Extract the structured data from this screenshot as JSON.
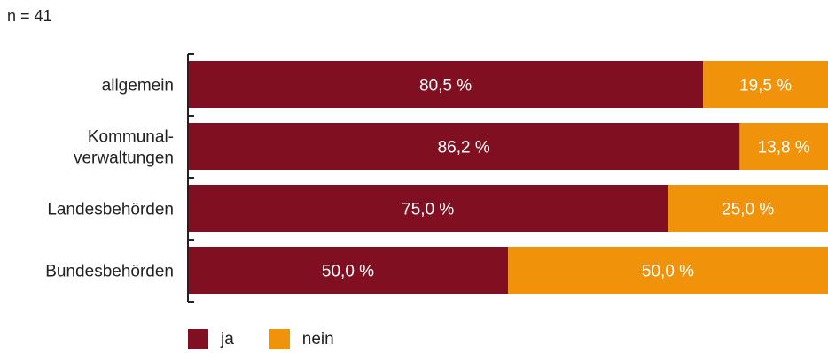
{
  "note": "n = 41",
  "chart_data": {
    "type": "bar",
    "orientation": "horizontal",
    "stacked": true,
    "categories": [
      [
        "allgemein"
      ],
      [
        "Kommunal-",
        "verwaltungen"
      ],
      [
        "Landesbehörden"
      ],
      [
        "Bundesbehörden"
      ]
    ],
    "series": [
      {
        "name": "ja",
        "color": "#7f0f21",
        "values": [
          80.5,
          86.2,
          75.0,
          50.0
        ],
        "labels": [
          "80,5 %",
          "86,2 %",
          "75,0 %",
          "50,0 %"
        ],
        "label_color": "#ffffff"
      },
      {
        "name": "nein",
        "color": "#f0920a",
        "values": [
          19.5,
          13.8,
          25.0,
          50.0
        ],
        "labels": [
          "19,5 %",
          "13,8 %",
          "25,0 %",
          "50,0 %"
        ],
        "label_color": "#ffffff"
      }
    ],
    "xlim": [
      0,
      100
    ],
    "grid": false,
    "legend_position": "bottom-left"
  }
}
